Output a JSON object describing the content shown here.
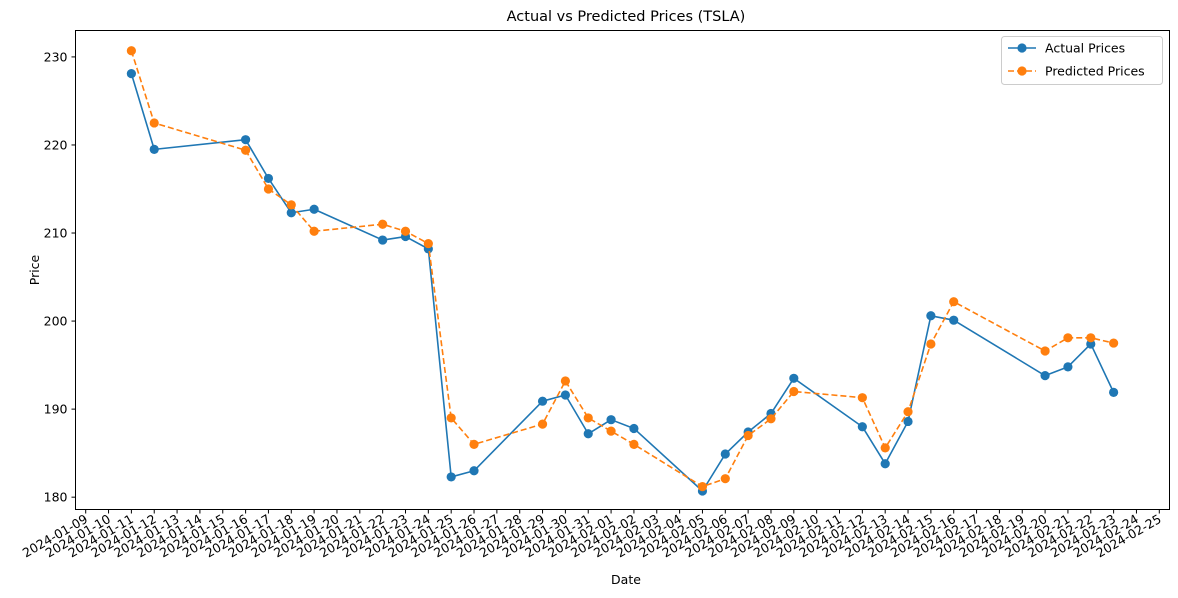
{
  "chart_data": {
    "type": "line",
    "title": "Actual vs Predicted Prices (TSLA)",
    "xlabel": "Date",
    "ylabel": "Price",
    "xlim": [
      "2024-01-09",
      "2024-02-25"
    ],
    "ylim": [
      178.6,
      233.0
    ],
    "yticks": [
      180,
      190,
      200,
      210,
      220,
      230
    ],
    "xticks": [
      "2024-01-09",
      "2024-01-10",
      "2024-01-11",
      "2024-01-12",
      "2024-01-13",
      "2024-01-14",
      "2024-01-15",
      "2024-01-16",
      "2024-01-17",
      "2024-01-18",
      "2024-01-19",
      "2024-01-20",
      "2024-01-21",
      "2024-01-22",
      "2024-01-23",
      "2024-01-24",
      "2024-01-25",
      "2024-01-26",
      "2024-01-27",
      "2024-01-28",
      "2024-01-29",
      "2024-01-30",
      "2024-01-31",
      "2024-02-01",
      "2024-02-02",
      "2024-02-03",
      "2024-02-04",
      "2024-02-05",
      "2024-02-06",
      "2024-02-07",
      "2024-02-08",
      "2024-02-09",
      "2024-02-10",
      "2024-02-11",
      "2024-02-12",
      "2024-02-13",
      "2024-02-14",
      "2024-02-15",
      "2024-02-16",
      "2024-02-17",
      "2024-02-18",
      "2024-02-19",
      "2024-02-20",
      "2024-02-21",
      "2024-02-22",
      "2024-02-23",
      "2024-02-24",
      "2024-02-25"
    ],
    "grid": false,
    "legend_position": "top-right",
    "x": [
      "2024-01-11",
      "2024-01-12",
      "2024-01-16",
      "2024-01-17",
      "2024-01-18",
      "2024-01-19",
      "2024-01-22",
      "2024-01-23",
      "2024-01-24",
      "2024-01-25",
      "2024-01-26",
      "2024-01-29",
      "2024-01-30",
      "2024-01-31",
      "2024-02-01",
      "2024-02-02",
      "2024-02-05",
      "2024-02-06",
      "2024-02-07",
      "2024-02-08",
      "2024-02-09",
      "2024-02-12",
      "2024-02-13",
      "2024-02-14",
      "2024-02-15",
      "2024-02-16",
      "2024-02-20",
      "2024-02-21",
      "2024-02-22",
      "2024-02-23"
    ],
    "series": [
      {
        "name": "Actual Prices",
        "color": "#1f77b4",
        "style": "solid",
        "values": [
          228.1,
          219.5,
          220.6,
          216.2,
          212.3,
          212.7,
          209.2,
          209.6,
          208.2,
          182.3,
          183.0,
          190.9,
          191.6,
          187.2,
          188.8,
          187.8,
          180.7,
          184.9,
          187.4,
          189.5,
          193.5,
          188.0,
          183.8,
          188.6,
          200.6,
          200.1,
          193.8,
          194.8,
          197.4,
          191.9
        ]
      },
      {
        "name": "Predicted Prices",
        "color": "#ff7f0e",
        "style": "dashed",
        "values": [
          230.7,
          222.5,
          219.4,
          215.0,
          213.2,
          210.2,
          211.0,
          210.2,
          208.8,
          189.0,
          186.0,
          188.3,
          193.2,
          189.0,
          187.5,
          186.0,
          181.2,
          182.1,
          187.0,
          188.9,
          192.0,
          191.3,
          185.6,
          189.7,
          197.4,
          202.2,
          196.6,
          198.1,
          198.1,
          197.5
        ]
      }
    ]
  }
}
